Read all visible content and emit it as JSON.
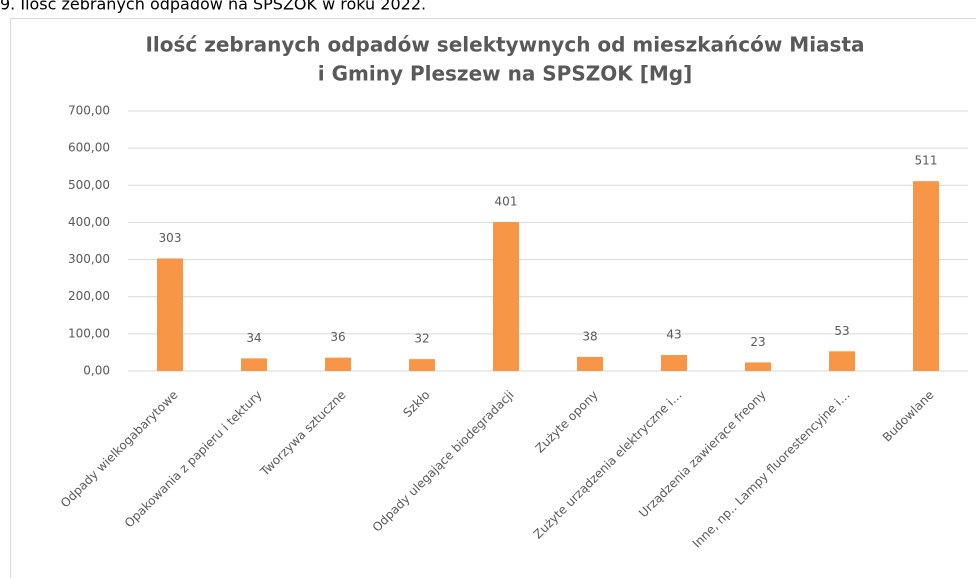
{
  "caption": "9. Ilość zebranych odpadów na SPSZOK w roku 2022.",
  "chart_data": {
    "type": "bar",
    "title": [
      "Ilość zebranych odpadów selektywnych od mieszkańców Miasta",
      "i Gminy Pleszew na SPSZOK [Mg]"
    ],
    "categories": [
      "Odpady wielkogabarytowe",
      "Opakowania z papieru i tektury",
      "Tworzywa sztuczne",
      "Szkło",
      "Odpady ulegające biodegradacji",
      "Zużyte opony",
      "Zużyte urządzenia elektryczne i…",
      "Urządzenia zawierące freony",
      "Inne, np.. Lampy fluorestencyjne i…",
      "Budowlane"
    ],
    "values": [
      303,
      34,
      36,
      32,
      401,
      38,
      43,
      23,
      53,
      511
    ],
    "color": "#f79646",
    "ylim": [
      0,
      700
    ],
    "yticks": [
      {
        "value": 0,
        "label": "0,00"
      },
      {
        "value": 100,
        "label": "100,00"
      },
      {
        "value": 200,
        "label": "200,00"
      },
      {
        "value": 300,
        "label": "300,00"
      },
      {
        "value": 400,
        "label": "400,00"
      },
      {
        "value": 500,
        "label": "500,00"
      },
      {
        "value": 600,
        "label": "600,00"
      },
      {
        "value": 700,
        "label": "700,00"
      }
    ],
    "grid": true
  }
}
